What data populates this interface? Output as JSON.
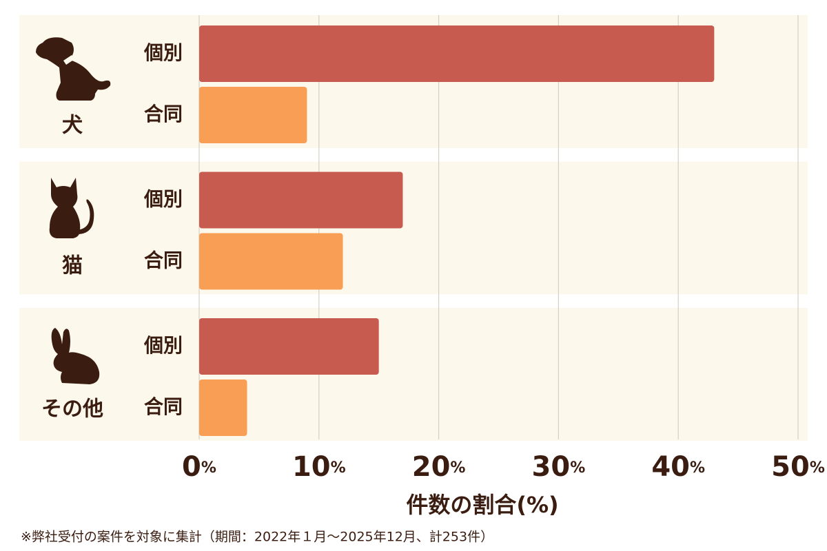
{
  "chart_data": {
    "type": "bar",
    "orientation": "horizontal",
    "categories": [
      "犬",
      "猫",
      "その他"
    ],
    "series": [
      {
        "name": "個別",
        "color": "#c75b4f",
        "values": [
          43,
          17,
          15
        ]
      },
      {
        "name": "合同",
        "color": "#f99f55",
        "values": [
          9,
          12,
          4
        ]
      }
    ],
    "xlim": [
      0,
      50
    ],
    "xticks": [
      {
        "value": 0,
        "label": "0%"
      },
      {
        "value": 10,
        "label": "10%"
      },
      {
        "value": 20,
        "label": "20%"
      },
      {
        "value": 30,
        "label": "30%"
      },
      {
        "value": 40,
        "label": "40%"
      },
      {
        "value": 50,
        "label": "50%"
      }
    ],
    "xlabel": "件数の割合(%)",
    "note": "※弊社受付の案件を対象に集計（期間：2022年１月～2025年12月、計253件）",
    "grid": true
  }
}
